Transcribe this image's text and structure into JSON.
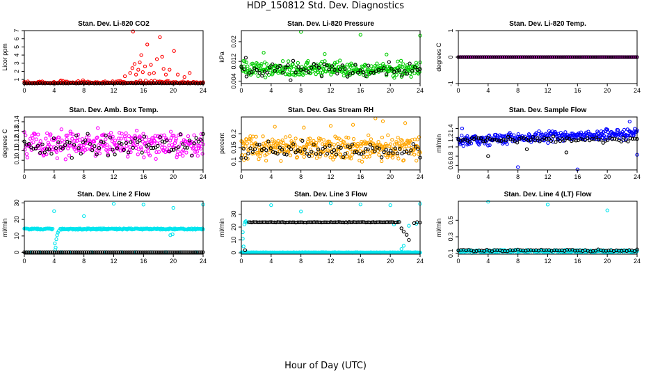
{
  "figure": {
    "title": "HDP_150812  Std. Dev. Diagnostics",
    "x_caption": "Hour of Day (UTC)"
  },
  "chart_data": [
    {
      "id": "co2",
      "type": "scatter",
      "title": "Stan. Dev. Li-820 CO2",
      "ylabel": "Licor ppm",
      "xlim": [
        0,
        24
      ],
      "xticks": [
        0,
        4,
        8,
        12,
        16,
        20,
        24
      ],
      "ylim": [
        0.5,
        7
      ],
      "yticks": [
        1,
        2,
        3,
        4,
        5,
        6,
        7
      ],
      "series": [
        {
          "name": "primary",
          "color": "#ff0000",
          "gen": {
            "kind": "noise",
            "n": 260,
            "base": 0.55,
            "amp": 0.35,
            "floor": 0.55
          },
          "points": [
            [
              14.2,
              1.8
            ],
            [
              14.5,
              2.4
            ],
            [
              14.8,
              2.9
            ],
            [
              15.0,
              1.6
            ],
            [
              15.3,
              2.2
            ],
            [
              15.5,
              3.1
            ],
            [
              15.7,
              4.0
            ],
            [
              15.9,
              1.9
            ],
            [
              16.2,
              2.6
            ],
            [
              16.5,
              5.3
            ],
            [
              16.8,
              1.7
            ],
            [
              17.0,
              2.8
            ],
            [
              17.4,
              1.8
            ],
            [
              17.8,
              3.5
            ],
            [
              18.2,
              6.2
            ],
            [
              18.5,
              3.8
            ],
            [
              18.7,
              2.3
            ],
            [
              19.0,
              1.6
            ],
            [
              19.5,
              2.2
            ],
            [
              20.1,
              4.5
            ],
            [
              20.6,
              1.6
            ],
            [
              14.6,
              6.9
            ],
            [
              13.5,
              1.4
            ],
            [
              21.5,
              1.3
            ],
            [
              22.2,
              1.8
            ]
          ]
        },
        {
          "name": "secondary",
          "color": "#000000",
          "gen": {
            "kind": "flat",
            "n": 70,
            "base": 0.53,
            "amp": 0.02
          }
        }
      ]
    },
    {
      "id": "pressure",
      "type": "scatter",
      "title": "Stan. Dev. Li-820 Pressure",
      "ylabel": "kPa",
      "xlim": [
        0,
        24
      ],
      "xticks": [
        0,
        4,
        8,
        12,
        16,
        20,
        24
      ],
      "ylim": [
        0.003,
        0.0245
      ],
      "yticks": [
        0.004,
        0.012,
        0.02
      ],
      "series": [
        {
          "name": "primary",
          "color": "#00cc00",
          "gen": {
            "kind": "noise",
            "n": 320,
            "base": 0.009,
            "amp": 0.004
          },
          "points": [
            [
              8.0,
              0.024
            ],
            [
              16.0,
              0.0228
            ],
            [
              24.0,
              0.0225
            ],
            [
              3.0,
              0.0155
            ],
            [
              11.2,
              0.015
            ],
            [
              19.5,
              0.0148
            ]
          ]
        },
        {
          "name": "secondary",
          "color": "#000000",
          "gen": {
            "kind": "noise",
            "n": 70,
            "base": 0.0085,
            "amp": 0.004
          },
          "points": [
            [
              0.6,
              0.0135
            ]
          ]
        }
      ]
    },
    {
      "id": "temp",
      "type": "scatter",
      "title": "Stan. Dev. Li-820 Temp.",
      "ylabel": "degrees C",
      "xlim": [
        0,
        24
      ],
      "xticks": [
        0,
        4,
        8,
        12,
        16,
        20,
        24
      ],
      "ylim": [
        -1,
        1
      ],
      "yticks": [
        -1.0,
        0.0,
        1.0
      ],
      "series": [
        {
          "name": "primary",
          "color": "#ff00ff",
          "gen": {
            "kind": "flat",
            "n": 160,
            "base": 0.0,
            "amp": 0.0
          }
        },
        {
          "name": "secondary",
          "color": "#000000",
          "gen": {
            "kind": "flat",
            "n": 90,
            "base": 0.0,
            "amp": 0.0
          }
        }
      ]
    },
    {
      "id": "ambbox",
      "type": "scatter",
      "title": "Stan. Dev. Amb. Box Temp.",
      "ylabel": "degrees C",
      "xlim": [
        0,
        24
      ],
      "xticks": [
        0,
        4,
        8,
        12,
        16,
        20,
        24
      ],
      "ylim": [
        0.09,
        0.145
      ],
      "yticks": [
        0.1,
        0.11,
        0.12,
        0.13,
        0.14
      ],
      "series": [
        {
          "name": "primary",
          "color": "#ff00ff",
          "gen": {
            "kind": "noise",
            "n": 300,
            "base": 0.117,
            "amp": 0.02
          }
        },
        {
          "name": "secondary",
          "color": "#000000",
          "gen": {
            "kind": "noise",
            "n": 80,
            "base": 0.116,
            "amp": 0.016
          }
        }
      ]
    },
    {
      "id": "rh",
      "type": "scatter",
      "title": "Stan. Dev. Gas Stream RH",
      "ylabel": "percent",
      "xlim": [
        0,
        24
      ],
      "xticks": [
        0,
        4,
        8,
        12,
        16,
        20,
        24
      ],
      "ylim": [
        0.07,
        0.26
      ],
      "yticks": [
        0.1,
        0.15,
        0.2
      ],
      "series": [
        {
          "name": "primary",
          "color": "#ffa500",
          "gen": {
            "kind": "noise",
            "n": 340,
            "base": 0.15,
            "amp": 0.055
          },
          "points": [
            [
              18.0,
              0.255
            ],
            [
              19.0,
              0.245
            ],
            [
              15.0,
              0.232
            ],
            [
              12.0,
              0.228
            ],
            [
              4.5,
              0.225
            ],
            [
              22.0,
              0.238
            ],
            [
              8.4,
              0.222
            ]
          ]
        },
        {
          "name": "secondary",
          "color": "#000000",
          "gen": {
            "kind": "noise",
            "n": 80,
            "base": 0.14,
            "amp": 0.04
          }
        }
      ]
    },
    {
      "id": "sampleflow",
      "type": "scatter",
      "title": "Stan. Dev. Sample Flow",
      "ylabel": "ml/min",
      "xlim": [
        0,
        24
      ],
      "xticks": [
        0,
        4,
        8,
        12,
        16,
        20,
        24
      ],
      "ylim": [
        0.5,
        1.65
      ],
      "yticks": [
        0.6,
        0.8,
        1.0,
        1.2,
        1.4
      ],
      "series": [
        {
          "name": "primary",
          "color": "#0000ff",
          "gen": {
            "kind": "noise",
            "n": 320,
            "base": 1.22,
            "amp": 0.14,
            "trend": 0.006
          },
          "points": [
            [
              8.0,
              0.56
            ],
            [
              16.0,
              0.51
            ],
            [
              24.0,
              0.83
            ],
            [
              23.0,
              1.55
            ],
            [
              0.5,
              1.4
            ],
            [
              1.2,
              1.05
            ]
          ]
        },
        {
          "name": "secondary",
          "color": "#000000",
          "gen": {
            "kind": "noise",
            "n": 80,
            "base": 1.16,
            "amp": 0.09
          },
          "points": [
            [
              4.0,
              0.8
            ],
            [
              14.5,
              0.88
            ],
            [
              9.2,
              0.95
            ]
          ]
        }
      ]
    },
    {
      "id": "line2",
      "type": "scatter",
      "title": "Stan. Dev. Line 2 Flow",
      "ylabel": "ml/min",
      "xlim": [
        0,
        24
      ],
      "xticks": [
        0,
        4,
        8,
        12,
        16,
        20,
        24
      ],
      "ylim": [
        -1,
        31
      ],
      "yticks": [
        0,
        10,
        20,
        30
      ],
      "series": [
        {
          "name": "primary",
          "color": "#00e5ee",
          "gen": {
            "kind": "flat",
            "n": 260,
            "base": 14.2,
            "amp": 0.4,
            "skip": [
              [
                3.8,
                4.8
              ]
            ]
          },
          "points": [
            [
              4.0,
              25.0
            ],
            [
              8.0,
              22.0
            ],
            [
              12.0,
              29.5
            ],
            [
              16.0,
              29.0
            ],
            [
              20.0,
              27.0
            ],
            [
              24.0,
              29.0
            ],
            [
              4.1,
              5.5
            ],
            [
              4.2,
              3.0
            ],
            [
              4.3,
              8.0
            ],
            [
              4.4,
              10.5
            ],
            [
              4.5,
              12.0
            ],
            [
              4.6,
              13.0
            ],
            [
              4.15,
              1.5
            ],
            [
              19.6,
              10.5
            ],
            [
              19.9,
              11.0
            ],
            [
              0.3,
              0.2
            ],
            [
              1.0,
              0.2
            ],
            [
              2.0,
              0.2
            ],
            [
              3.0,
              0.2
            ],
            [
              5.0,
              0.2
            ],
            [
              6.0,
              0.2
            ],
            [
              7.0,
              0.2
            ],
            [
              9.0,
              0.2
            ],
            [
              11.0,
              0.2
            ],
            [
              13.0,
              0.2
            ],
            [
              15.0,
              0.2
            ],
            [
              17.0,
              0.2
            ],
            [
              19.0,
              0.2
            ],
            [
              21.0,
              0.2
            ],
            [
              23.0,
              0.2
            ]
          ]
        },
        {
          "name": "secondary",
          "color": "#000000",
          "gen": {
            "kind": "flat",
            "n": 90,
            "base": 0.2,
            "amp": 0.0
          }
        }
      ]
    },
    {
      "id": "line3",
      "type": "scatter",
      "title": "Stan. Dev. Line 3 Flow",
      "ylabel": "ml/min",
      "xlim": [
        0,
        24
      ],
      "xticks": [
        0,
        4,
        8,
        12,
        16,
        20,
        24
      ],
      "ylim": [
        -1,
        40
      ],
      "yticks": [
        0,
        10,
        20,
        30
      ],
      "series": [
        {
          "name": "primary",
          "color": "#00e5ee",
          "gen": {
            "kind": "flat",
            "n": 260,
            "base": 0.3,
            "amp": 0.2
          },
          "points": [
            [
              0.2,
              16.0
            ],
            [
              0.2,
              11.0
            ],
            [
              0.3,
              5.0
            ],
            [
              0.4,
              22.0
            ],
            [
              0.5,
              24.0
            ],
            [
              0.6,
              24.5
            ],
            [
              0.7,
              23.5
            ],
            [
              4.0,
              37.0
            ],
            [
              8.0,
              32.0
            ],
            [
              12.0,
              38.5
            ],
            [
              16.0,
              37.5
            ],
            [
              20.0,
              37.0
            ],
            [
              24.0,
              38.0
            ],
            [
              21.5,
              3.0
            ],
            [
              21.8,
              5.5
            ],
            [
              20.5,
              22.0
            ],
            [
              21.0,
              24.0
            ],
            [
              23.5,
              22.5
            ],
            [
              22.5,
              21.0
            ]
          ]
        },
        {
          "name": "secondary",
          "color": "#000000",
          "gen": {
            "kind": "flat",
            "n": 100,
            "base": 23.7,
            "amp": 0.2,
            "xrange": [
              1.0,
              21.2
            ]
          },
          "points": [
            [
              0.5,
              2.0
            ],
            [
              21.5,
              19.0
            ],
            [
              21.8,
              16.5
            ],
            [
              22.2,
              14.0
            ],
            [
              22.5,
              10.0
            ],
            [
              23.2,
              23.0
            ],
            [
              23.6,
              23.8
            ],
            [
              24.0,
              23.5
            ]
          ]
        }
      ]
    },
    {
      "id": "line4",
      "type": "scatter",
      "title": "Stan. Dev. Line 4 (LT) Flow",
      "ylabel": "ml/min",
      "xlim": [
        0,
        24
      ],
      "xticks": [
        0,
        4,
        8,
        12,
        16,
        20,
        24
      ],
      "ylim": [
        0.09,
        0.73
      ],
      "yticks": [
        0.1,
        0.3,
        0.5
      ],
      "series": [
        {
          "name": "primary",
          "color": "#00e5ee",
          "gen": {
            "kind": "noise",
            "n": 240,
            "base": 0.125,
            "amp": 0.022
          },
          "points": [
            [
              4.0,
              0.725
            ],
            [
              12.0,
              0.69
            ],
            [
              20.0,
              0.62
            ]
          ]
        },
        {
          "name": "secondary",
          "color": "#000000",
          "gen": {
            "kind": "noise",
            "n": 70,
            "base": 0.135,
            "amp": 0.014
          }
        }
      ]
    }
  ]
}
